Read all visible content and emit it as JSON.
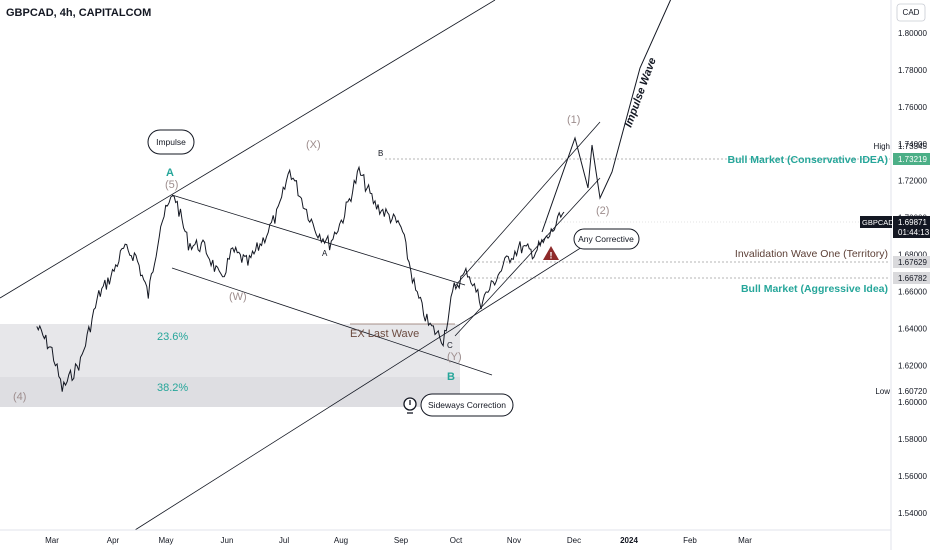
{
  "header": {
    "symbol_line": "GBPCAD, 4h, CAPITALCOM"
  },
  "currency": "CAD",
  "chart_data": {
    "type": "line",
    "symbol": "GBPCAD",
    "timeframe": "4h",
    "x_ticks": [
      "Mar",
      "Apr",
      "May",
      "Jun",
      "Jul",
      "Aug",
      "Sep",
      "Oct",
      "Nov",
      "Dec",
      "2024",
      "Feb",
      "Mar"
    ],
    "y_ticks": [
      "1.54000",
      "1.56000",
      "1.58000",
      "1.60000",
      "1.62000",
      "1.64000",
      "1.66000",
      "1.68000",
      "1.70000",
      "1.72000",
      "1.74000",
      "1.76000",
      "1.78000",
      "1.80000"
    ],
    "ylim": [
      1.532,
      1.822
    ],
    "grid": false,
    "price_path": {
      "x": [
        "Feb-23",
        "Mar-01",
        "Mar-06",
        "Mar-15",
        "Mar-24",
        "Mar-30",
        "Apr-07",
        "Apr-14",
        "Apr-21",
        "Apr-28",
        "May-05",
        "May-12",
        "May-20",
        "May-28",
        "Jun-04",
        "Jun-12",
        "Jun-20",
        "Jun-28",
        "Jul-04",
        "Jul-12",
        "Jul-18",
        "Jul-25",
        "Aug-02",
        "Aug-10",
        "Aug-18",
        "Aug-25",
        "Sep-01",
        "Sep-09",
        "Sep-16",
        "Sep-24",
        "Sep-30",
        "Oct-07",
        "Oct-14",
        "Oct-21",
        "Oct-28",
        "Nov-04",
        "Nov-11",
        "Nov-18",
        "Nov-26"
      ],
      "y": [
        1.641,
        1.628,
        1.607,
        1.622,
        1.658,
        1.668,
        1.683,
        1.679,
        1.658,
        1.697,
        1.713,
        1.686,
        1.684,
        1.666,
        1.682,
        1.675,
        1.688,
        1.703,
        1.726,
        1.706,
        1.693,
        1.686,
        1.7,
        1.725,
        1.707,
        1.701,
        1.695,
        1.66,
        1.642,
        1.634,
        1.662,
        1.671,
        1.654,
        1.666,
        1.678,
        1.684,
        1.681,
        1.689,
        1.703
      ]
    },
    "projection": {
      "points": [
        "(1)",
        "(2)",
        "Impulse Wave"
      ],
      "y": [
        1.743,
        1.706,
        1.85
      ]
    },
    "levels": [
      {
        "name": "Bull Market (Conservative IDEA)",
        "value": 1.73219,
        "axis_label": "1.73219"
      },
      {
        "name": "Invalidation Wave One (Territory)",
        "value": 1.67629,
        "axis_label": "1.67629"
      },
      {
        "name": "Bull Market (Aggressive Idea)",
        "value": 1.66782,
        "axis_label": "1.66782"
      }
    ],
    "last_price": {
      "label": "GBPCAD",
      "value": "1.69871",
      "countdown": "01:44:13"
    },
    "high": {
      "label": "High",
      "value": "1.73345"
    },
    "low": {
      "label": "Low",
      "value": "1.60720"
    },
    "fibonacci": [
      {
        "label": "23.6%",
        "y_top": 1.643,
        "y_bottom": 1.618
      },
      {
        "label": "38.2%",
        "y_top": 1.618,
        "y_bottom": 1.598
      }
    ],
    "wave_labels": [
      "(4)",
      "(5)",
      "A",
      "(W)",
      "(X)",
      "A",
      "B",
      "C",
      "(Y)",
      "B",
      "(1)",
      "(2)"
    ],
    "callouts": [
      "Impulse",
      "Any Corrective",
      "Sideways Correction",
      "EX Last Wave",
      "Impulse Wave"
    ]
  },
  "colors": {
    "teal": "#26a69a",
    "price": "#131722",
    "grey_line": "#131722",
    "fib_band": "#e3e3e7",
    "warning": "#8e2a2a"
  }
}
